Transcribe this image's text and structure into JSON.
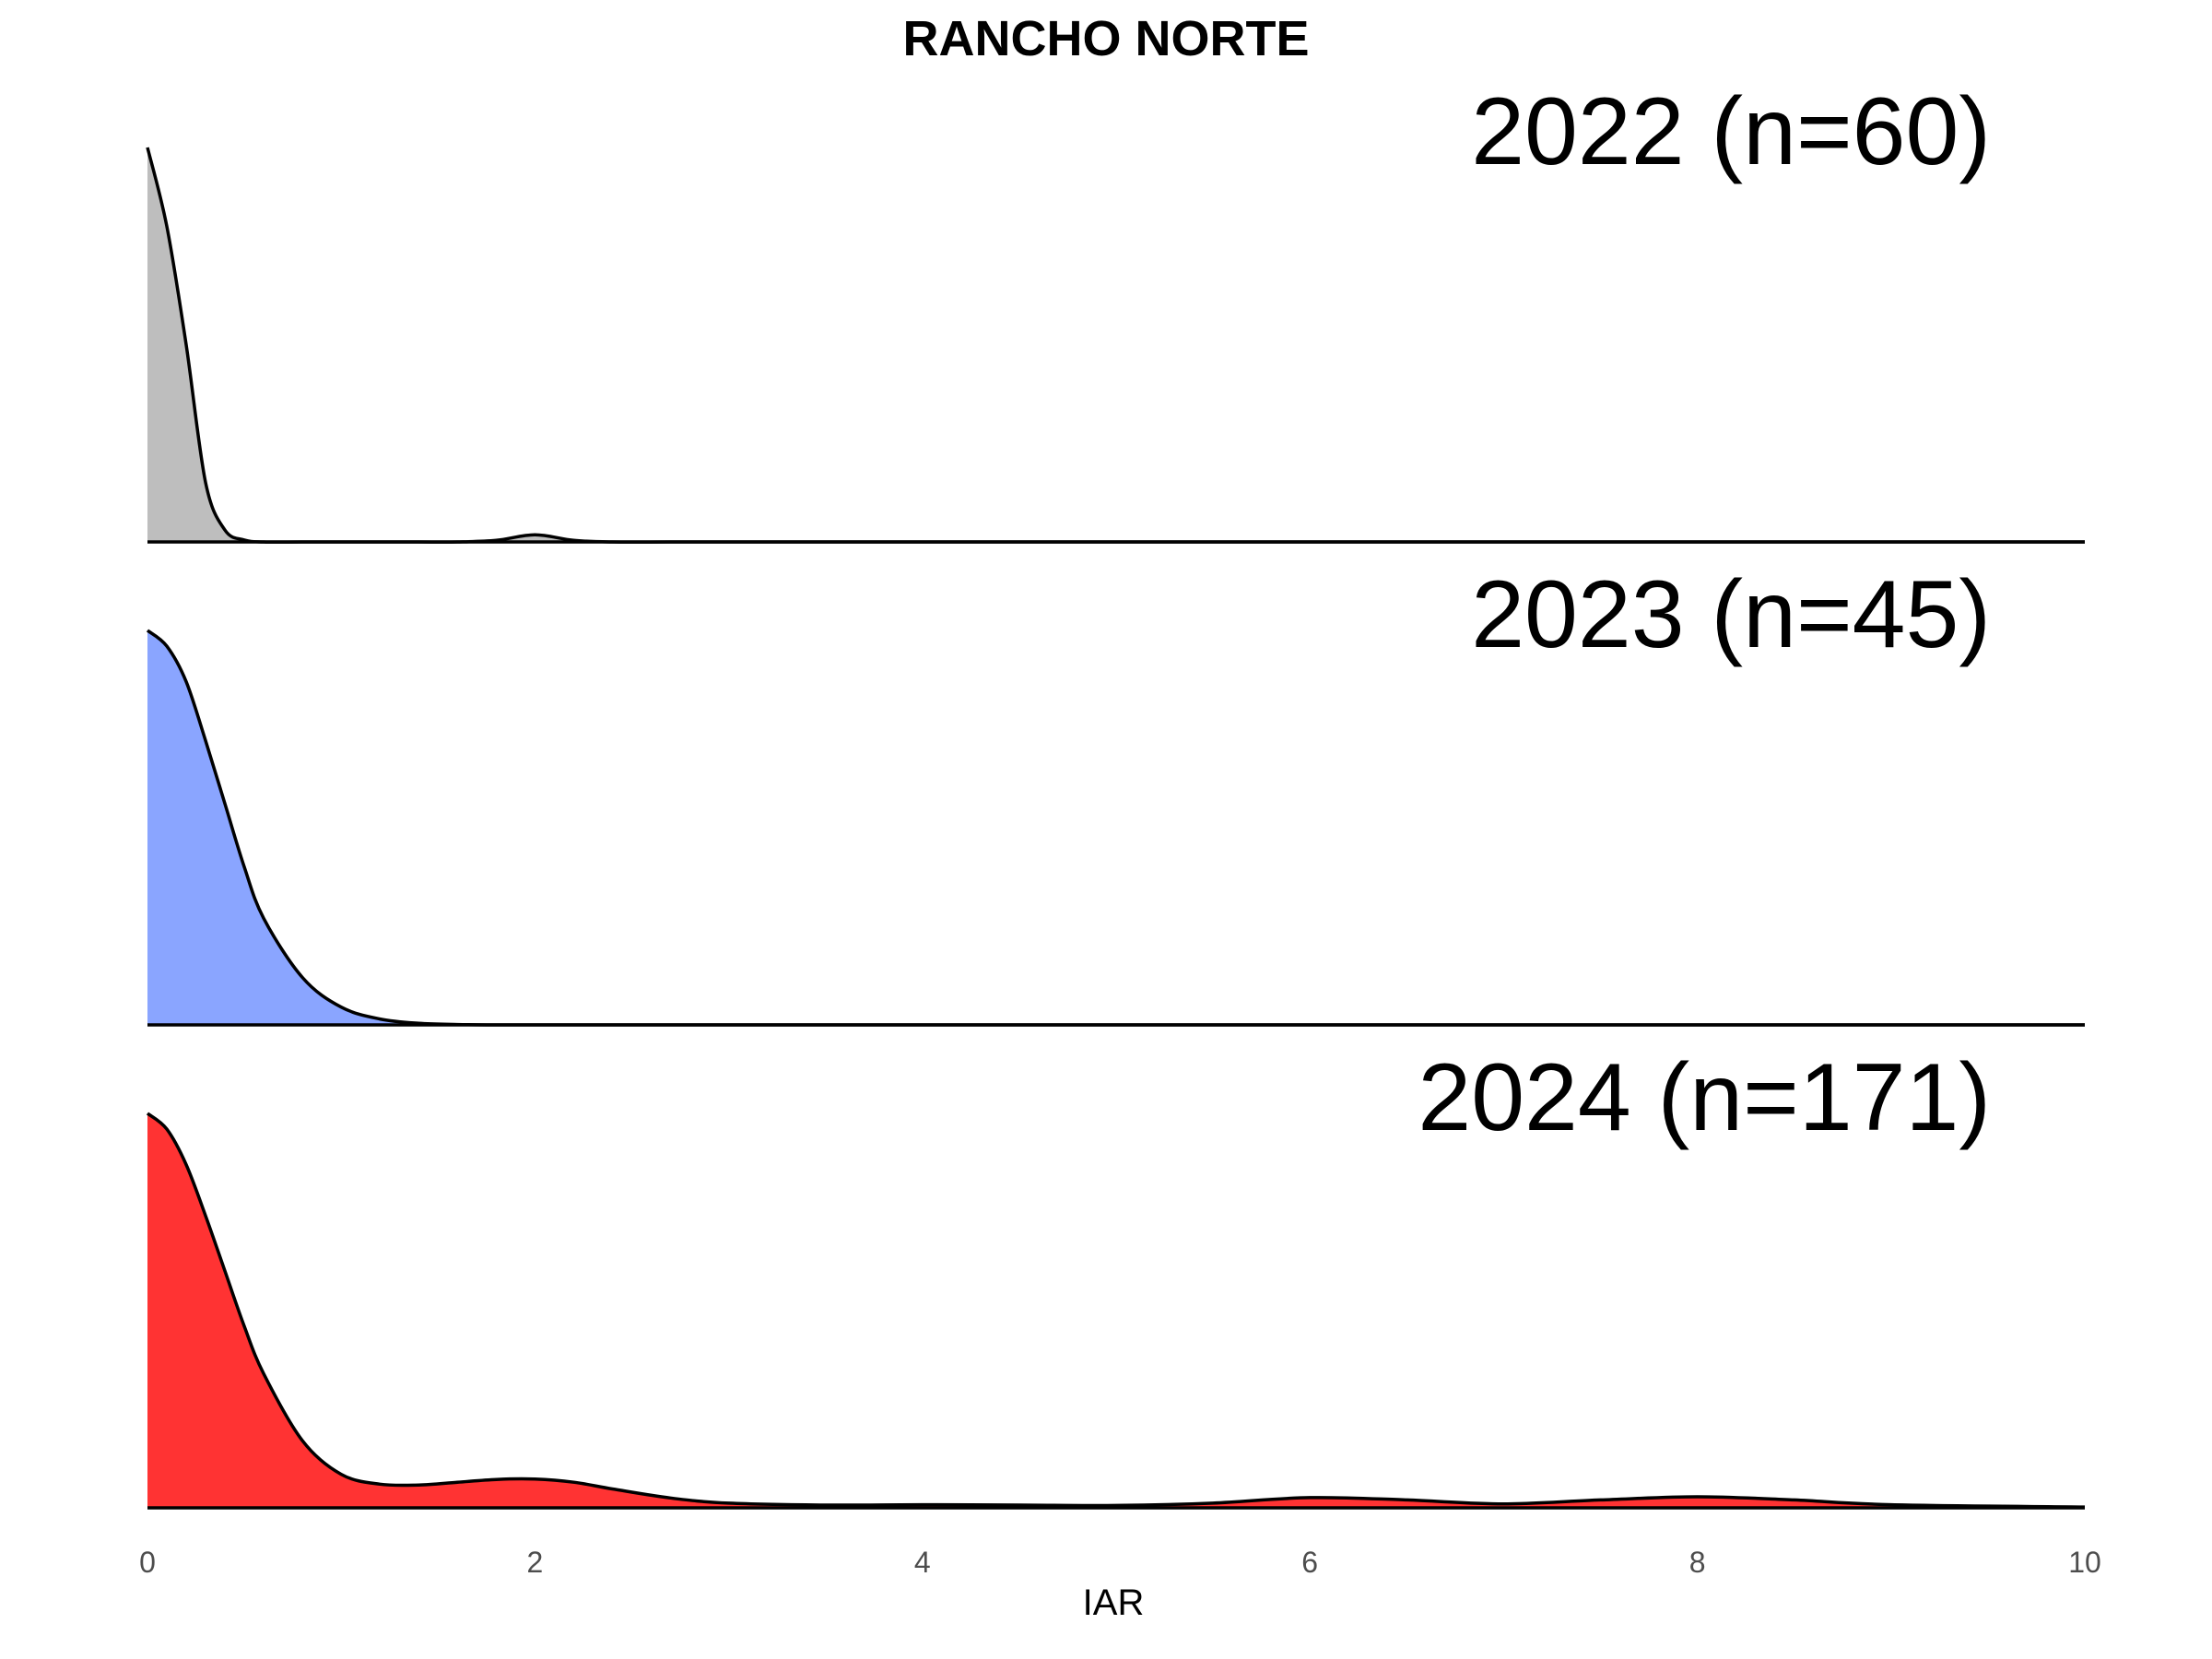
{
  "chart_data": {
    "type": "area",
    "title": "RANCHO NORTE",
    "xlabel": "IAR",
    "ylabel": "",
    "xlim": [
      0,
      10
    ],
    "x_ticks": [
      "0",
      "2",
      "4",
      "6",
      "8",
      "10"
    ],
    "x_tick_values": [
      0,
      2,
      4,
      6,
      8,
      10
    ],
    "grid": false,
    "legend": "none",
    "x": [
      0,
      0.1,
      0.2,
      0.3,
      0.4,
      0.5,
      0.6,
      0.8,
      1.0,
      1.2,
      1.4,
      1.6,
      1.8,
      2.0,
      2.2,
      2.4,
      2.7,
      3.0,
      3.5,
      4.0,
      4.5,
      5.0,
      5.5,
      6.0,
      6.5,
      7.0,
      7.5,
      8.0,
      8.5,
      9.0,
      10.0
    ],
    "series": [
      {
        "name": "2022 (n=60)",
        "color": "#bebebe",
        "values": [
          1.0,
          0.8,
          0.5,
          0.15,
          0.03,
          0.005,
          0,
          0,
          0,
          0,
          0,
          0,
          0.004,
          0.018,
          0.004,
          0,
          0,
          0,
          0,
          0,
          0,
          0,
          0,
          0,
          0,
          0,
          0,
          0,
          0,
          0,
          0
        ]
      },
      {
        "name": "2023 (n=45)",
        "color": "#8aa5ff",
        "values": [
          1.0,
          0.96,
          0.87,
          0.72,
          0.56,
          0.4,
          0.27,
          0.12,
          0.045,
          0.015,
          0.004,
          0.001,
          0,
          0,
          0,
          0,
          0,
          0,
          0,
          0,
          0,
          0,
          0,
          0,
          0,
          0,
          0,
          0,
          0,
          0,
          0
        ]
      },
      {
        "name": "2024 (n=171)",
        "color": "#ff3333",
        "values": [
          1.0,
          0.96,
          0.87,
          0.74,
          0.6,
          0.46,
          0.34,
          0.17,
          0.085,
          0.06,
          0.058,
          0.065,
          0.072,
          0.073,
          0.065,
          0.048,
          0.025,
          0.012,
          0.007,
          0.008,
          0.007,
          0.006,
          0.012,
          0.026,
          0.02,
          0.01,
          0.02,
          0.028,
          0.02,
          0.008,
          0.002
        ]
      }
    ]
  }
}
